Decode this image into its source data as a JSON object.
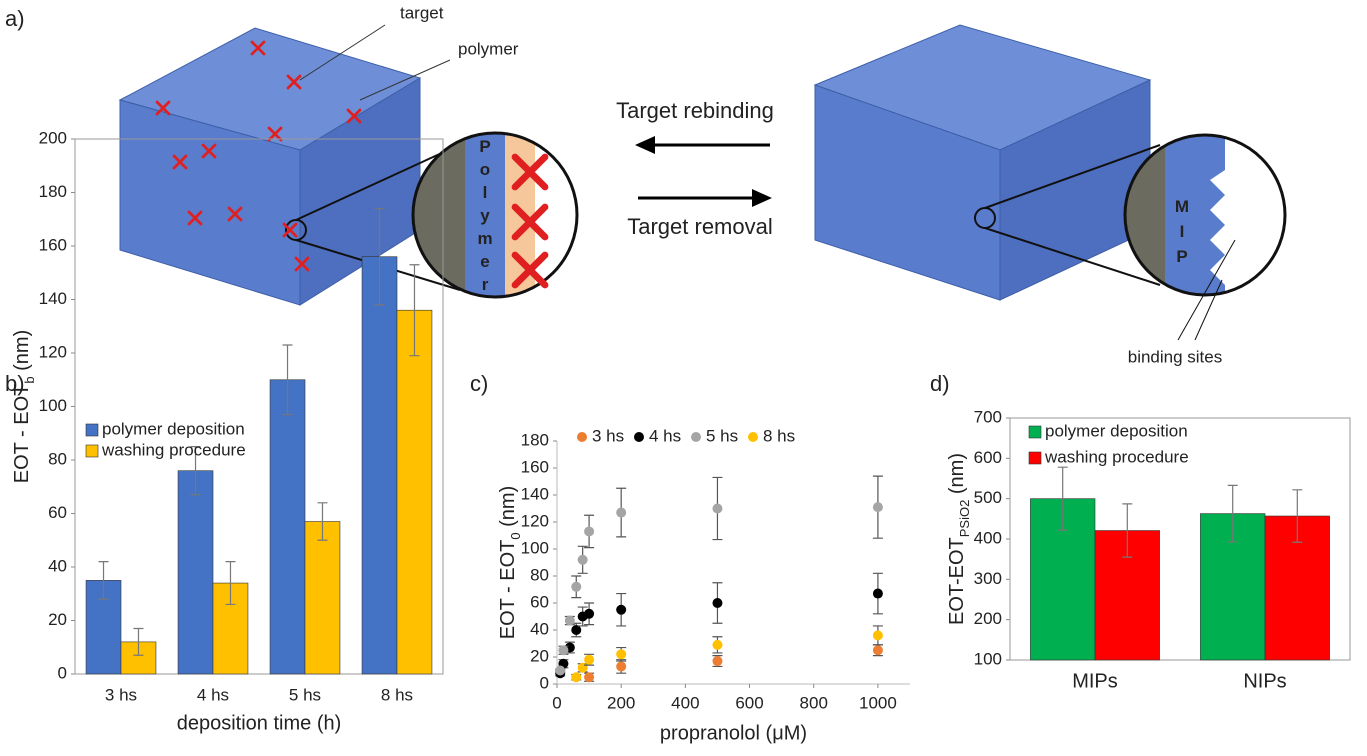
{
  "diagram": {
    "panel": "a)",
    "target": "target",
    "polymer": "polymer",
    "rebinding": "Target rebinding",
    "removal": "Target removal",
    "binding_sites": "binding sites",
    "polymer_letters": "Polymer",
    "mip_letters": "MIP"
  },
  "chart_data": [
    {
      "type": "bar",
      "panel": "b)",
      "ylabel": [
        "EOT - EOT",
        "b",
        " (nm)"
      ],
      "xlabel": "deposition time (h)",
      "categories": [
        "3 hs",
        "4 hs",
        "5 hs",
        "8 hs"
      ],
      "series": [
        {
          "name": "polymer deposition",
          "color": "#4472c4",
          "values": [
            35,
            76,
            110,
            156
          ],
          "errors": [
            7,
            9,
            13,
            18
          ]
        },
        {
          "name": "washing procedure",
          "color": "#ffc000",
          "values": [
            12,
            34,
            57,
            136
          ],
          "errors": [
            5,
            8,
            7,
            17
          ]
        }
      ],
      "ylim": [
        0,
        200
      ],
      "yticks": [
        0,
        20,
        40,
        60,
        80,
        100,
        120,
        140,
        160,
        180,
        200
      ],
      "legend": "upper left"
    },
    {
      "type": "scatter",
      "panel": "c)",
      "ylabel": [
        "EOT - EOT",
        "0",
        " (nm)"
      ],
      "xlabel": "propranolol (μM)",
      "series": [
        {
          "name": "3 hs",
          "color": "#ed7d31",
          "x": [
            100,
            200,
            500,
            1000
          ],
          "values": [
            5,
            13,
            17,
            25
          ],
          "errors": [
            3,
            5,
            4,
            4
          ]
        },
        {
          "name": "4 hs",
          "color": "#000000",
          "x": [
            10,
            20,
            40,
            60,
            80,
            100,
            200,
            500,
            1000
          ],
          "values": [
            8,
            15,
            27,
            40,
            50,
            52,
            55,
            60,
            67
          ],
          "errors": [
            2,
            3,
            4,
            5,
            7,
            8,
            12,
            15,
            15
          ]
        },
        {
          "name": "5 hs",
          "color": "#a5a5a5",
          "x": [
            10,
            20,
            40,
            60,
            80,
            100,
            200,
            500,
            1000
          ],
          "values": [
            10,
            25,
            47,
            72,
            92,
            113,
            127,
            130,
            131
          ],
          "errors": [
            1,
            3,
            3,
            8,
            10,
            12,
            18,
            23,
            23
          ]
        },
        {
          "name": "8 hs",
          "color": "#ffc000",
          "x": [
            60,
            80,
            100,
            200,
            500,
            1000
          ],
          "values": [
            5,
            12,
            18,
            22,
            29,
            36
          ],
          "errors": [
            2,
            3,
            4,
            5,
            6,
            7
          ]
        }
      ],
      "xlim": [
        0,
        1100
      ],
      "xticks": [
        0,
        200,
        400,
        600,
        800,
        1000
      ],
      "ylim": [
        0,
        180
      ],
      "yticks": [
        0,
        20,
        40,
        60,
        80,
        100,
        120,
        140,
        160,
        180
      ],
      "legend": "upper center"
    },
    {
      "type": "bar",
      "panel": "d)",
      "ylabel": [
        "EOT-EOT",
        "PSiO2",
        " (nm)"
      ],
      "categories": [
        "MIPs",
        "NIPs"
      ],
      "series": [
        {
          "name": "polymer deposition",
          "color": "#00b050",
          "values": [
            500,
            463
          ],
          "errors": [
            78,
            70
          ]
        },
        {
          "name": "washing procedure",
          "color": "#ff0000",
          "values": [
            421,
            457
          ],
          "errors": [
            66,
            65
          ]
        }
      ],
      "ylim": [
        100,
        700
      ],
      "yticks": [
        100,
        200,
        300,
        400,
        500,
        600,
        700
      ],
      "legend": "upper left"
    }
  ]
}
